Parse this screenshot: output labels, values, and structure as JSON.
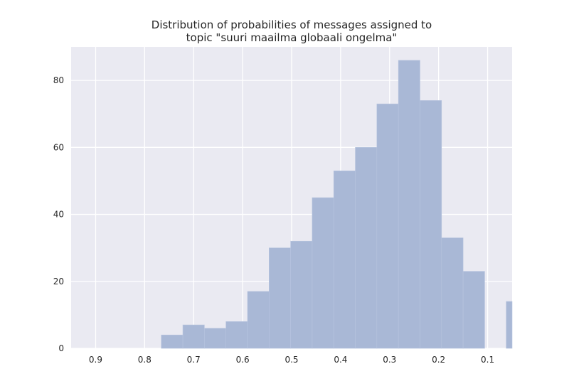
{
  "chart_data": {
    "type": "bar",
    "title": [
      "Distribution of probabilities of messages assigned to",
      "topic \"suuri maailma globaali ongelma\""
    ],
    "xlabel": "",
    "ylabel": "",
    "x_axis_reversed": true,
    "xlim": [
      0.95,
      0.05
    ],
    "ylim": [
      0,
      90
    ],
    "xticks": [
      0.9,
      0.8,
      0.7,
      0.6,
      0.5,
      0.4,
      0.3,
      0.2,
      0.1
    ],
    "xtick_labels": [
      "0.9",
      "0.8",
      "0.7",
      "0.6",
      "0.5",
      "0.4",
      "0.3",
      "0.2",
      "0.1"
    ],
    "yticks": [
      0,
      20,
      40,
      60,
      80
    ],
    "ytick_labels": [
      "0",
      "20",
      "40",
      "60",
      "80"
    ],
    "grid": true,
    "bin_edges": [
      0.766,
      0.722,
      0.678,
      0.634,
      0.59,
      0.546,
      0.502,
      0.458,
      0.414,
      0.37,
      0.326,
      0.282,
      0.238,
      0.194,
      0.15,
      0.106,
      0.062,
      0.018
    ],
    "values": [
      4,
      7,
      6,
      8,
      17,
      30,
      32,
      45,
      53,
      60,
      73,
      86,
      74,
      33,
      23,
      0,
      14
    ],
    "colors": {
      "background": "#eaeaf2",
      "grid": "#ffffff",
      "bar": "#a9b8d6",
      "bar_edge": "#b8c5df",
      "text": "#262626"
    }
  }
}
